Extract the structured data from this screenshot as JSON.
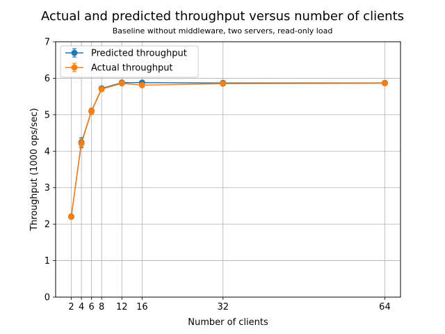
{
  "chart_data": {
    "type": "line",
    "title": "Actual and predicted throughput versus number of clients",
    "subtitle": "Baseline without middleware, two servers, read-only load",
    "xlabel": "Number of clients",
    "ylabel": "Throughput (1000 ops/sec)",
    "x": [
      2,
      4,
      6,
      8,
      12,
      16,
      32,
      64
    ],
    "xticks": [
      "2",
      "4",
      "6",
      "8",
      "12",
      "16",
      "32",
      "64"
    ],
    "xlim": [
      -1.1,
      67.1
    ],
    "ylim": [
      0,
      7
    ],
    "yticks": [
      "0",
      "1",
      "2",
      "3",
      "4",
      "5",
      "6",
      "7"
    ],
    "grid": true,
    "legend_position": "top-left",
    "series": [
      {
        "name": "Predicted throughput",
        "color": "#1f77b4",
        "values": [
          2.21,
          4.24,
          5.1,
          5.72,
          5.88,
          5.88,
          5.87,
          5.87
        ],
        "errors": [
          0.04,
          0.13,
          0.08,
          0.04,
          0.03,
          0.03,
          0.03,
          0.03
        ]
      },
      {
        "name": "Actual throughput",
        "color": "#ff7f0e",
        "values": [
          2.2,
          4.21,
          5.09,
          5.7,
          5.86,
          5.81,
          5.85,
          5.86
        ],
        "errors": [
          0.04,
          0.12,
          0.08,
          0.04,
          0.03,
          0.03,
          0.03,
          0.03
        ]
      }
    ]
  }
}
